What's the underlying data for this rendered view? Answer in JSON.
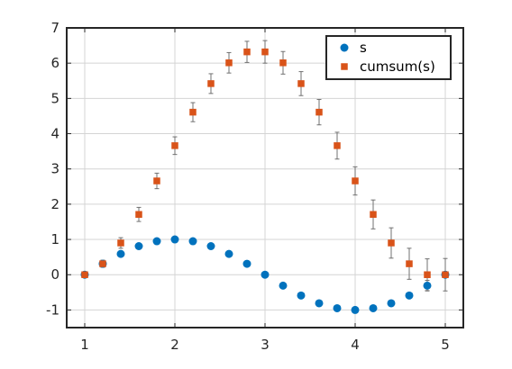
{
  "chart_data": {
    "type": "scatter",
    "xlim": [
      0.8,
      5.2
    ],
    "ylim": [
      -1.5,
      7
    ],
    "xticks": [
      1,
      2,
      3,
      4,
      5
    ],
    "yticks": [
      -1,
      0,
      1,
      2,
      3,
      4,
      5,
      6,
      7
    ],
    "grid": true,
    "legend_position": "top-right",
    "x": [
      1.0,
      1.2,
      1.4,
      1.6,
      1.8,
      2.0,
      2.2,
      2.4,
      2.6,
      2.8,
      3.0,
      3.2,
      3.4,
      3.6,
      3.8,
      4.0,
      4.2,
      4.4,
      4.6,
      4.8,
      5.0
    ],
    "series": [
      {
        "name": "s",
        "marker": "circle",
        "color": "#0072BD",
        "values": [
          0,
          0.31,
          0.59,
          0.81,
          0.95,
          1.0,
          0.95,
          0.81,
          0.59,
          0.31,
          0,
          -0.31,
          -0.59,
          -0.81,
          -0.95,
          -1.0,
          -0.95,
          -0.81,
          -0.59,
          -0.31,
          0
        ],
        "error": [
          0,
          0.1,
          0,
          0,
          0,
          0,
          0,
          0,
          0,
          0,
          0,
          0,
          0,
          0,
          0,
          0,
          0,
          0,
          0,
          0.15,
          0
        ]
      },
      {
        "name": "cumsum(s)",
        "marker": "square",
        "color": "#D95319",
        "values": [
          0,
          0.31,
          0.9,
          1.71,
          2.66,
          3.66,
          4.61,
          5.42,
          6.01,
          6.32,
          6.32,
          6.01,
          5.42,
          4.61,
          3.66,
          2.66,
          1.71,
          0.9,
          0.31,
          0,
          0
        ],
        "error": [
          0.05,
          0.1,
          0.15,
          0.2,
          0.22,
          0.25,
          0.27,
          0.28,
          0.29,
          0.3,
          0.32,
          0.32,
          0.34,
          0.36,
          0.38,
          0.4,
          0.41,
          0.43,
          0.44,
          0.45,
          0.46
        ]
      }
    ]
  }
}
